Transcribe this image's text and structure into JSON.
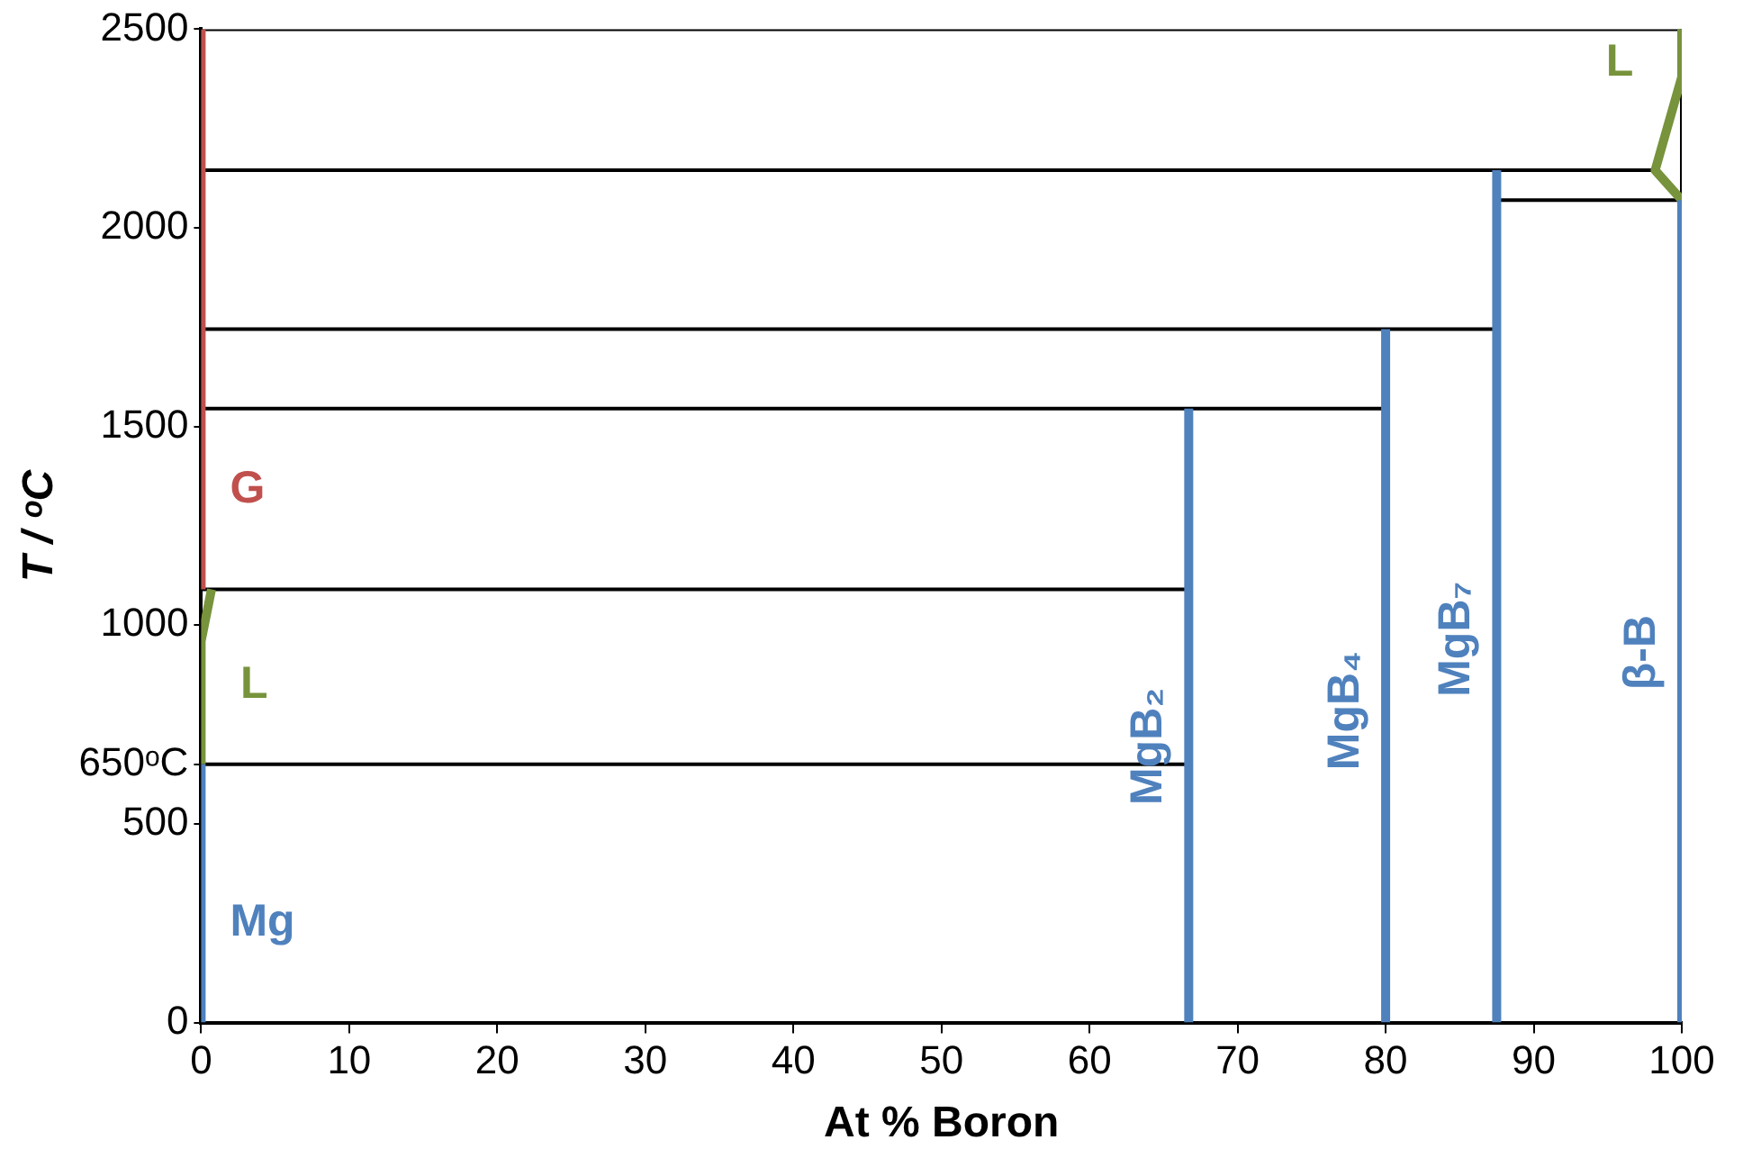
{
  "chart_data": {
    "type": "line",
    "xlabel": "At % Boron",
    "ylabel": "T / ᵒC",
    "xlim": [
      0,
      100
    ],
    "xticks": [
      0,
      10,
      20,
      30,
      40,
      50,
      60,
      70,
      80,
      90,
      100
    ],
    "ylim": [
      0,
      2500
    ],
    "yticks": [
      0,
      500,
      {
        "value": 650,
        "label": "650ᵒC"
      },
      1000,
      1500,
      2000,
      2500
    ],
    "grid": false,
    "legend": false,
    "series": [
      {
        "name": "Mg",
        "color": "#4f81bd",
        "x": [
          0,
          0
        ],
        "values": [
          0,
          650
        ]
      },
      {
        "name": "L",
        "color": "#77933c",
        "x": [
          0,
          0,
          0.7
        ],
        "values": [
          650,
          960,
          1090
        ]
      },
      {
        "name": "G",
        "color": "#c0504d",
        "x": [
          0,
          0
        ],
        "values": [
          1090,
          2500
        ]
      },
      {
        "name": "MgB₂",
        "color": "#4f81bd",
        "x": [
          66.7,
          66.7
        ],
        "values": [
          0,
          1545
        ]
      },
      {
        "name": "MgB₄",
        "color": "#4f81bd",
        "x": [
          80,
          80
        ],
        "values": [
          0,
          1745
        ]
      },
      {
        "name": "MgB₇",
        "color": "#4f81bd",
        "x": [
          87.5,
          87.5
        ],
        "values": [
          0,
          2145
        ]
      },
      {
        "name": "β-B",
        "color": "#4f81bd",
        "x": [
          100,
          100
        ],
        "values": [
          0,
          2070
        ]
      },
      {
        "name": "L",
        "color": "#77933c",
        "x": [
          100,
          100,
          98.2,
          100
        ],
        "values": [
          2500,
          2380,
          2145,
          2070
        ]
      },
      {
        "color": "#000000",
        "x": [
          0,
          66.7
        ],
        "values": [
          650,
          650
        ]
      },
      {
        "color": "#000000",
        "x": [
          0,
          66.7
        ],
        "values": [
          1090,
          1090
        ]
      },
      {
        "color": "#000000",
        "x": [
          0,
          80
        ],
        "values": [
          1545,
          1545
        ]
      },
      {
        "color": "#000000",
        "x": [
          0,
          87.5
        ],
        "values": [
          1745,
          1745
        ]
      },
      {
        "color": "#000000",
        "x": [
          0,
          98.2
        ],
        "values": [
          2145,
          2145
        ]
      },
      {
        "color": "#000000",
        "x": [
          87.5,
          100
        ],
        "values": [
          2070,
          2070
        ]
      },
      {
        "color": "#000000",
        "x": [
          0,
          100
        ],
        "values": [
          2500,
          2500
        ]
      },
      {
        "color": "#000000",
        "x": [
          100,
          100
        ],
        "values": [
          2070,
          2500
        ]
      }
    ]
  }
}
